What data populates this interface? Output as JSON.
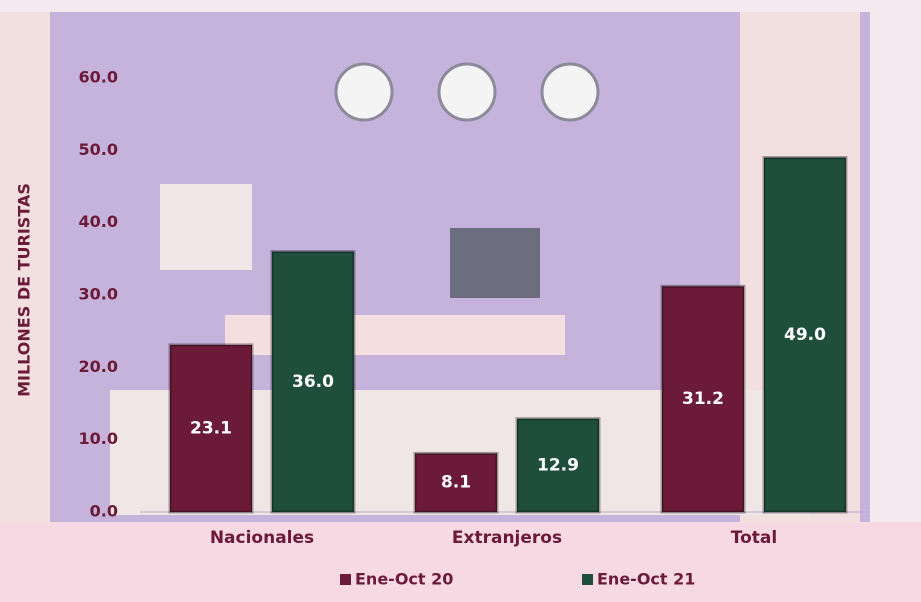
{
  "chart_data": {
    "type": "bar",
    "y_axis_label": "MILLONES DE TURISTAS",
    "categories": [
      "Nacionales",
      "Extranjeros",
      "Total"
    ],
    "series": [
      {
        "name": "Ene-Oct 20",
        "color": "#6b1a38",
        "values": [
          23.1,
          8.1,
          31.2
        ],
        "value_labels": [
          "23.1",
          "8.1",
          "31.2"
        ]
      },
      {
        "name": "Ene-Oct 21",
        "color": "#1f4e3d",
        "values": [
          36.0,
          12.9,
          49.0
        ],
        "value_labels": [
          "36.0",
          "12.9",
          "49.0"
        ]
      }
    ],
    "ylim": [
      0,
      60
    ],
    "yticks": [
      {
        "value": 0,
        "label": "0.0"
      },
      {
        "value": 10,
        "label": "10.0"
      },
      {
        "value": 20,
        "label": "20.0"
      },
      {
        "value": 30,
        "label": "30.0"
      },
      {
        "value": 40,
        "label": "40.0"
      },
      {
        "value": 50,
        "label": "50.0"
      },
      {
        "value": 60,
        "label": "60.0"
      }
    ],
    "grid": false,
    "legend": "bottom"
  }
}
